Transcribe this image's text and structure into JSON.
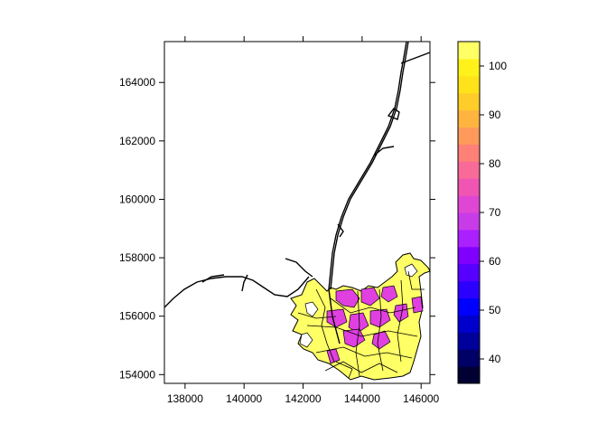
{
  "plot": {
    "x_ticks": [
      "138000",
      "140000",
      "142000",
      "144000",
      "146000"
    ],
    "x_tick_values": [
      138000,
      140000,
      142000,
      144000,
      146000
    ],
    "y_ticks": [
      "154000",
      "156000",
      "158000",
      "160000",
      "162000",
      "164000"
    ],
    "y_tick_values": [
      154000,
      156000,
      158000,
      160000,
      162000,
      164000
    ],
    "xlim": [
      137300,
      146300
    ],
    "ylim": [
      153700,
      165400
    ],
    "region_fill": "#ffff66",
    "highlight_fill": "#e040e0",
    "line_color": "#000000"
  },
  "colorkey": {
    "labels": [
      "100",
      "90",
      "80",
      "70",
      "60",
      "50",
      "40"
    ],
    "label_values": [
      100,
      90,
      80,
      70,
      60,
      50,
      40
    ],
    "range": [
      35,
      105
    ],
    "colors": [
      "#000033",
      "#000066",
      "#00009a",
      "#0000cc",
      "#0000ff",
      "#2b00ff",
      "#5600ff",
      "#8000ff",
      "#ab20ff",
      "#c83ce8",
      "#e046d4",
      "#f055b4",
      "#f86a98",
      "#ff8076",
      "#ff9a5a",
      "#ffb43f",
      "#ffcd2a",
      "#ffe31a",
      "#fff21a",
      "#ffff66"
    ]
  }
}
